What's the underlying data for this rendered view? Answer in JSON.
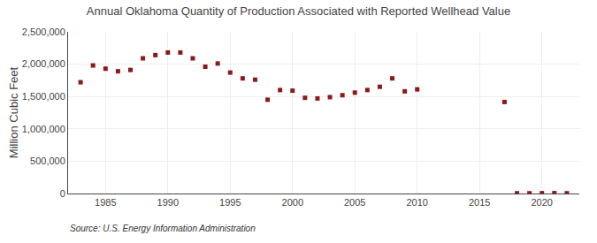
{
  "chart_data": {
    "type": "scatter",
    "title": "Annual Oklahoma Quantity of Production Associated with Reported Wellhead Value",
    "y_label": "Million Cubic Feet",
    "annotations": [
      "Source: U.S. Energy Information Administration"
    ],
    "x": [
      1983,
      1984,
      1985,
      1986,
      1987,
      1988,
      1989,
      1990,
      1991,
      1992,
      1993,
      1994,
      1995,
      1996,
      1997,
      1998,
      1999,
      2000,
      2001,
      2002,
      2003,
      2004,
      2005,
      2006,
      2007,
      2008,
      2009,
      2010,
      2017,
      2018,
      2019,
      2020,
      2021,
      2022
    ],
    "values": [
      1720000,
      1980000,
      1930000,
      1890000,
      1910000,
      2090000,
      2140000,
      2180000,
      2180000,
      2090000,
      1960000,
      2010000,
      1870000,
      1780000,
      1760000,
      1450000,
      1600000,
      1590000,
      1480000,
      1470000,
      1490000,
      1520000,
      1560000,
      1600000,
      1650000,
      1780000,
      1580000,
      1610000,
      1415000,
      4000,
      4000,
      5000,
      6000,
      4000
    ],
    "color": "#8b1a1a",
    "marker": "square",
    "xlim": [
      1982,
      2023
    ],
    "xticks": [
      1985,
      1990,
      1995,
      2000,
      2005,
      2010,
      2015,
      2020
    ],
    "ylim": [
      0,
      2500000
    ],
    "yticks": [
      0,
      {
        "value": 500000,
        "label": "500,000"
      },
      {
        "value": 1000000,
        "label": "1,000,000"
      },
      {
        "value": 1500000,
        "label": "1,500,000"
      },
      {
        "value": 2000000,
        "label": "2,000,000"
      },
      {
        "value": 2500000,
        "label": "2,500,000"
      }
    ],
    "grid": true
  }
}
